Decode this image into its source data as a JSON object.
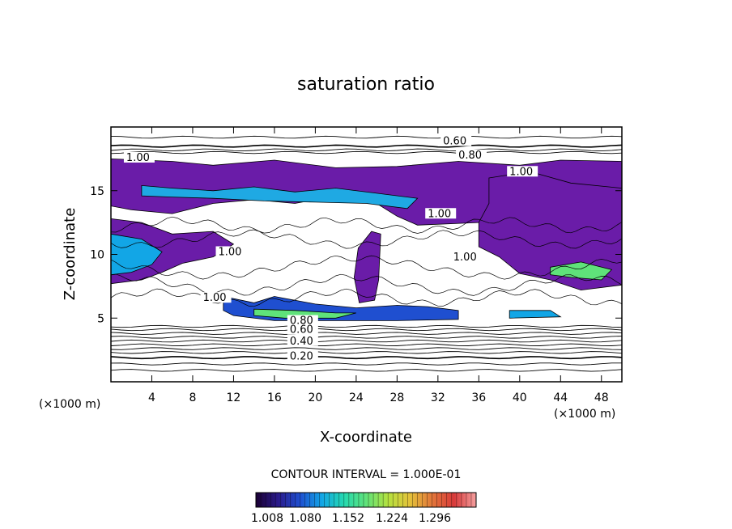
{
  "chart_data": {
    "type": "heatmap",
    "title": "saturation ratio",
    "xlabel": "X-coordinate",
    "ylabel": "Z-coordinate",
    "x_unit_left": "(×1000 m)",
    "x_unit_right": "(×1000 m)",
    "xlim": [
      0,
      50
    ],
    "ylim": [
      0,
      20
    ],
    "x_ticks": [
      4,
      8,
      12,
      16,
      20,
      24,
      28,
      32,
      36,
      40,
      44,
      48
    ],
    "y_ticks": [
      5,
      10,
      15
    ],
    "contour_interval_text": "CONTOUR INTERVAL = 1.000E-01",
    "colorbar": {
      "tick_labels": [
        "1.008",
        "1.080",
        "1.152",
        "1.224",
        "1.296"
      ],
      "colors": [
        "#1a0033",
        "#2a1a8a",
        "#1f4fd0",
        "#12a6e6",
        "#25d9b0",
        "#5fe27a",
        "#b5e23f",
        "#e4c13a",
        "#e2763a",
        "#d93a3a",
        "#f4a0a0"
      ]
    },
    "contour_labels": [
      {
        "text": "0.60",
        "x": 32.5,
        "z": 18.7
      },
      {
        "text": "0.80",
        "x": 34.0,
        "z": 17.6
      },
      {
        "text": "1.00",
        "x": 1.5,
        "z": 17.4
      },
      {
        "text": "1.00",
        "x": 39.0,
        "z": 16.3
      },
      {
        "text": "1.00",
        "x": 31.0,
        "z": 13.0
      },
      {
        "text": "1.00",
        "x": 10.5,
        "z": 10.0
      },
      {
        "text": "1.00",
        "x": 33.5,
        "z": 9.6
      },
      {
        "text": "1.00",
        "x": 9.0,
        "z": 6.4
      },
      {
        "text": "0.80",
        "x": 17.5,
        "z": 4.6
      },
      {
        "text": "0.60",
        "x": 17.5,
        "z": 3.9
      },
      {
        "text": "0.40",
        "x": 17.5,
        "z": 3.0
      },
      {
        "text": "0.20",
        "x": 17.5,
        "z": 1.8
      }
    ],
    "supersaturated_regions": [
      {
        "label": "upper cloud band",
        "color": "#6a1ca8",
        "points": [
          [
            0,
            17.5
          ],
          [
            6,
            17.3
          ],
          [
            10,
            17.0
          ],
          [
            16,
            17.4
          ],
          [
            22,
            16.8
          ],
          [
            28,
            16.9
          ],
          [
            34,
            17.3
          ],
          [
            40,
            17.0
          ],
          [
            44,
            17.4
          ],
          [
            50,
            17.3
          ],
          [
            50,
            14.5
          ],
          [
            46,
            15.0
          ],
          [
            44,
            13.5
          ],
          [
            40,
            12.8
          ],
          [
            36,
            12.5
          ],
          [
            30,
            12.3
          ],
          [
            28,
            13.0
          ],
          [
            26,
            14.0
          ],
          [
            22,
            14.6
          ],
          [
            18,
            14.0
          ],
          [
            14,
            14.3
          ],
          [
            10,
            14.0
          ],
          [
            6,
            13.2
          ],
          [
            2,
            13.5
          ],
          [
            0,
            13.8
          ]
        ]
      },
      {
        "label": "upper cloud core",
        "color": "#1fa9e3",
        "points": [
          [
            3,
            15.4
          ],
          [
            6,
            15.2
          ],
          [
            10,
            15.0
          ],
          [
            14,
            15.3
          ],
          [
            18,
            14.9
          ],
          [
            22,
            15.2
          ],
          [
            26,
            14.8
          ],
          [
            30,
            14.4
          ],
          [
            29,
            13.6
          ],
          [
            25,
            14.0
          ],
          [
            20,
            14.1
          ],
          [
            15,
            14.2
          ],
          [
            10,
            14.4
          ],
          [
            6,
            14.5
          ],
          [
            3,
            14.6
          ]
        ]
      },
      {
        "label": "right mid cloud",
        "color": "#6a1ca8",
        "points": [
          [
            37,
            16.0
          ],
          [
            41,
            16.5
          ],
          [
            45,
            15.6
          ],
          [
            50,
            15.2
          ],
          [
            50,
            7.6
          ],
          [
            46,
            7.2
          ],
          [
            43,
            8.0
          ],
          [
            40,
            8.5
          ],
          [
            38,
            9.8
          ],
          [
            36,
            10.6
          ],
          [
            36,
            12.5
          ],
          [
            37,
            14.0
          ]
        ]
      },
      {
        "label": "right cloud core",
        "color": "#5fe27a",
        "points": [
          [
            43,
            9.0
          ],
          [
            46,
            9.4
          ],
          [
            49,
            8.8
          ],
          [
            48,
            8.0
          ],
          [
            45,
            8.2
          ],
          [
            43,
            8.4
          ]
        ]
      },
      {
        "label": "left mid cloud",
        "color": "#6a1ca8",
        "points": [
          [
            0,
            12.8
          ],
          [
            3,
            12.5
          ],
          [
            6,
            11.6
          ],
          [
            10,
            11.8
          ],
          [
            12,
            10.8
          ],
          [
            10,
            9.8
          ],
          [
            7,
            9.3
          ],
          [
            5,
            8.6
          ],
          [
            3,
            8.0
          ],
          [
            0,
            7.7
          ]
        ]
      },
      {
        "label": "left cloud core",
        "color": "#12a6e6",
        "points": [
          [
            0,
            11.6
          ],
          [
            3,
            11.2
          ],
          [
            5,
            10.2
          ],
          [
            4,
            9.2
          ],
          [
            2,
            8.6
          ],
          [
            0,
            8.4
          ]
        ]
      },
      {
        "label": "central column",
        "color": "#6a1ca8",
        "points": [
          [
            24.2,
            10.5
          ],
          [
            25.5,
            11.8
          ],
          [
            26.4,
            11.6
          ],
          [
            26.2,
            8.0
          ],
          [
            25.8,
            6.4
          ],
          [
            24.3,
            6.2
          ],
          [
            23.8,
            8.2
          ]
        ]
      },
      {
        "label": "lower cloud band",
        "color": "#1f4fd0",
        "points": [
          [
            11,
            6.7
          ],
          [
            14,
            6.2
          ],
          [
            16,
            6.7
          ],
          [
            20,
            6.1
          ],
          [
            24,
            5.8
          ],
          [
            28,
            6.0
          ],
          [
            31,
            5.9
          ],
          [
            34,
            5.6
          ],
          [
            34,
            4.9
          ],
          [
            28,
            4.8
          ],
          [
            22,
            4.8
          ],
          [
            16,
            4.8
          ],
          [
            12,
            5.2
          ],
          [
            11,
            5.6
          ]
        ]
      },
      {
        "label": "lower cloud core",
        "color": "#5fe27a",
        "points": [
          [
            14,
            5.7
          ],
          [
            18,
            5.6
          ],
          [
            22,
            5.4
          ],
          [
            24,
            5.4
          ],
          [
            22,
            5.0
          ],
          [
            17,
            5.0
          ],
          [
            14,
            5.2
          ]
        ]
      },
      {
        "label": "right lower cloud",
        "color": "#12a6e6",
        "points": [
          [
            39,
            5.6
          ],
          [
            43,
            5.6
          ],
          [
            44,
            5.1
          ],
          [
            39,
            5.0
          ]
        ]
      }
    ]
  }
}
